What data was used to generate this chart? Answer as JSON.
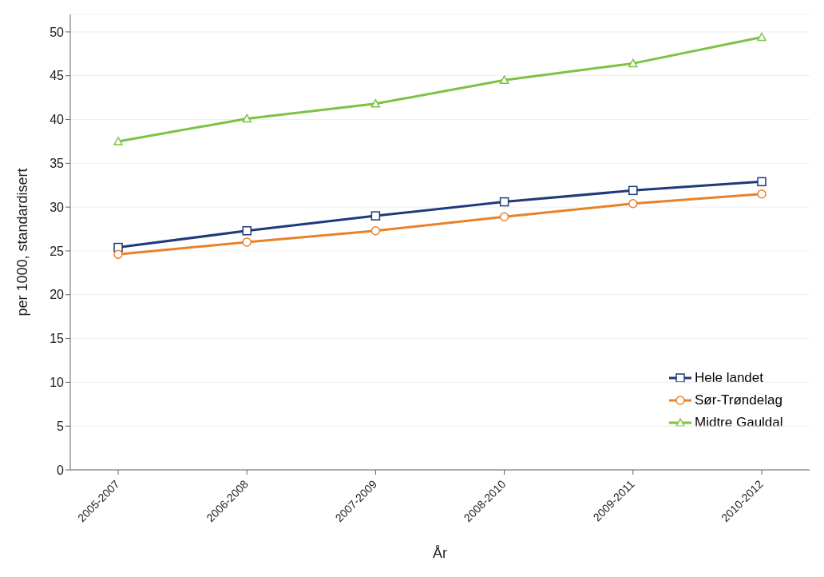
{
  "chart_data": {
    "type": "line",
    "xlabel": "År",
    "ylabel": "per 1000, standardisert",
    "categories": [
      "2005-2007",
      "2006-2008",
      "2007-2009",
      "2008-2010",
      "2009-2011",
      "2010-2012"
    ],
    "series": [
      {
        "name": "Hele landet",
        "color": "#1f3a7a",
        "marker": "square",
        "values": [
          25.4,
          27.3,
          29.0,
          30.6,
          31.9,
          32.9
        ]
      },
      {
        "name": "Sør-Trøndelag",
        "color": "#e8822a",
        "marker": "circle",
        "values": [
          24.6,
          26.0,
          27.3,
          28.9,
          30.4,
          31.5
        ]
      },
      {
        "name": "Midtre Gauldal",
        "color": "#7dc242",
        "marker": "triangle",
        "values": [
          37.5,
          40.1,
          41.8,
          44.5,
          46.4,
          49.4
        ]
      }
    ],
    "ylim": [
      0,
      52
    ],
    "yticks": [
      0,
      5,
      10,
      15,
      20,
      25,
      30,
      35,
      40,
      45,
      50
    ],
    "grid": "y",
    "legend": "bottom right"
  }
}
